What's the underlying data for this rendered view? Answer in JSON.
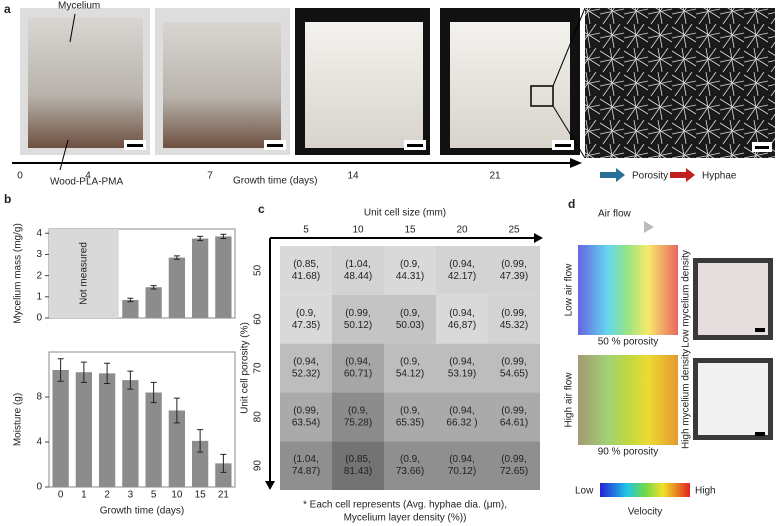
{
  "panel_a": {
    "label": "a",
    "annotations": [
      "Mycelium",
      "Wood-PLA-PMA"
    ],
    "timeline": {
      "label": "Growth time (days)",
      "ticks": [
        "0",
        "4",
        "7",
        "14",
        "21"
      ]
    },
    "legend": [
      {
        "name": "Porosity",
        "color": "#2a6f97"
      },
      {
        "name": "Hyphae",
        "color": "#c0201d"
      }
    ]
  },
  "panel_b": {
    "label": "b",
    "annotation": "Not measured"
  },
  "chart_data": [
    {
      "type": "bar",
      "ylabel": "Mycelium mass (mg/g)",
      "values": [
        null,
        null,
        null,
        0.85,
        1.45,
        2.85,
        3.75,
        3.85
      ],
      "errors": [
        null,
        null,
        null,
        0.08,
        0.08,
        0.08,
        0.1,
        0.1
      ],
      "color": "#8c8c8c",
      "ylim": [
        0,
        4.2
      ],
      "yticks": [
        0,
        1,
        2,
        3,
        4
      ]
    },
    {
      "type": "bar",
      "ylabel": "Moisture (g)",
      "xlabel": "Growth time (days)",
      "categories": [
        "0",
        "1",
        "2",
        "3",
        "5",
        "10",
        "15",
        "21"
      ],
      "values": [
        10.4,
        10.2,
        10.1,
        9.5,
        8.4,
        6.8,
        4.1,
        2.1
      ],
      "errors": [
        1.0,
        0.9,
        0.9,
        0.8,
        0.9,
        1.1,
        1.0,
        0.8
      ],
      "color": "#8c8c8c",
      "ylim": [
        0,
        12
      ],
      "yticks": [
        0,
        4,
        8
      ]
    }
  ],
  "panel_c": {
    "label": "c",
    "x_title": "Unit cell size (mm)",
    "y_title": "Unit cell porosity (%)",
    "columns": [
      "5",
      "10",
      "15",
      "20",
      "25"
    ],
    "rows": [
      "50",
      "60",
      "70",
      "80",
      "90"
    ],
    "cells": [
      [
        {
          "lines": [
            "(0.85,",
            "41.68)"
          ],
          "color": "#d9d9d9"
        },
        {
          "lines": [
            "(1.04,",
            "48.44)"
          ],
          "color": "#d3d3d3"
        },
        {
          "lines": [
            "(0.9,",
            "44.31)"
          ],
          "color": "#d9d9d9"
        },
        {
          "lines": [
            "(0.94,",
            "42.17)"
          ],
          "color": "#d3d3d3"
        },
        {
          "lines": [
            "(0.99,",
            "47.39)"
          ],
          "color": "#d3d3d3"
        }
      ],
      [
        {
          "lines": [
            "(0.9,",
            "47.35)"
          ],
          "color": "#d9d9d9"
        },
        {
          "lines": [
            "(0.99,",
            "50.12)"
          ],
          "color": "#c4c4c4"
        },
        {
          "lines": [
            "(0.9,",
            "50.03)"
          ],
          "color": "#c4c4c4"
        },
        {
          "lines": [
            "(0.94,",
            "46,87)"
          ],
          "color": "#d9d9d9"
        },
        {
          "lines": [
            "(0.99,",
            "45.32)"
          ],
          "color": "#d3d3d3"
        }
      ],
      [
        {
          "lines": [
            "(0.94,",
            "52.32)"
          ],
          "color": "#bdbdbd"
        },
        {
          "lines": [
            "(0.94,",
            "60.71)"
          ],
          "color": "#a6a6a6"
        },
        {
          "lines": [
            "(0.9,",
            "54.12)"
          ],
          "color": "#bdbdbd"
        },
        {
          "lines": [
            "(0.94,",
            "53.19)"
          ],
          "color": "#bdbdbd"
        },
        {
          "lines": [
            "(0.99,",
            "54.65)"
          ],
          "color": "#bdbdbd"
        }
      ],
      [
        {
          "lines": [
            "(0.99,",
            "63.54)"
          ],
          "color": "#aaaaaa"
        },
        {
          "lines": [
            "(0.9,",
            "75.28)"
          ],
          "color": "#8c8c8c"
        },
        {
          "lines": [
            "(0.9,",
            "65.35)"
          ],
          "color": "#aaaaaa"
        },
        {
          "lines": [
            "(0.94,",
            "66.32 )"
          ],
          "color": "#aaaaaa"
        },
        {
          "lines": [
            "(0.99,",
            "64.61)"
          ],
          "color": "#aaaaaa"
        }
      ],
      [
        {
          "lines": [
            "(1.04,",
            "74.87)"
          ],
          "color": "#8f8f8f"
        },
        {
          "lines": [
            "(0.85,",
            "81.43)"
          ],
          "color": "#737373"
        },
        {
          "lines": [
            "(0.9,",
            "73.66)"
          ],
          "color": "#8f8f8f"
        },
        {
          "lines": [
            "(0.94,",
            "70.12)"
          ],
          "color": "#8f8f8f"
        },
        {
          "lines": [
            "(0.99,",
            "72.65)"
          ],
          "color": "#8f8f8f"
        }
      ]
    ],
    "footnote": [
      "* Each cell represents (Avg. hyphae dia. (μm),",
      "Mycelium layer density (%))"
    ]
  },
  "panel_d": {
    "label": "d",
    "arrow_label": "Air flow",
    "sims": [
      {
        "side": "Low air flow",
        "caption": "50 % porosity"
      },
      {
        "side": "High air flow",
        "caption": "90 % porosity"
      }
    ],
    "photos": [
      "Low mycelium density",
      "High mycelium density"
    ],
    "colorbar": {
      "low": "Low",
      "high": "High",
      "title": "Velocity"
    }
  }
}
